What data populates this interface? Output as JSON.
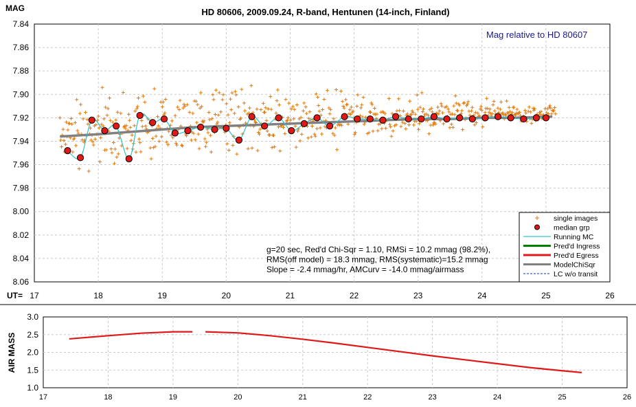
{
  "title": "HD 80606, 2009.09.24, R-band, Hentunen (14-inch, Finland)",
  "colors": {
    "single": "#e07a10",
    "median": "#e01818",
    "running": "#30c0c8",
    "ingress": "#008000",
    "egress": "#e01818",
    "model": "#808080",
    "nolc": "#1030c0",
    "annotation": "#1a1a8c",
    "grid": "#c8c8c8"
  },
  "chart_data": [
    {
      "type": "scatter",
      "ylabel": "MAG",
      "xlabel": "UT=",
      "annotation": "Mag relative to HD 80607",
      "xlim": [
        17,
        26
      ],
      "ylim": [
        7.84,
        8.06
      ],
      "y_inverted": true,
      "xticks": [
        "17",
        "18",
        "19",
        "20",
        "21",
        "22",
        "23",
        "24",
        "25",
        "26"
      ],
      "yticks": [
        "7.84",
        "7.86",
        "7.88",
        "7.90",
        "7.92",
        "7.94",
        "7.96",
        "7.98",
        "8.00",
        "8.02",
        "8.04",
        "8.06"
      ],
      "grid": true,
      "legend_placement": "bottom-right",
      "stats": [
        "g=20 sec, Red'd Chi-Sqr = 1.10, RMSi = 10.2 mmag (98.2%),",
        "RMS(off model) = 18.3 mmag, RMS(systematic)=15.2 mmag",
        "Slope = -2.4 mmag/hr, AMCurv = -14.0 mmag/airmass"
      ],
      "legend": [
        {
          "label": "single images",
          "marker": "plus",
          "color": "#e07a10"
        },
        {
          "label": "median grp",
          "marker": "dot",
          "color": "#e01818"
        },
        {
          "label": "Running MC",
          "marker": "line",
          "color": "#30c0c8"
        },
        {
          "label": "Pred'd Ingress",
          "marker": "thick",
          "color": "#008000"
        },
        {
          "label": "Pred'd Egress",
          "marker": "thick",
          "color": "#e01818"
        },
        {
          "label": "ModelChiSqr",
          "marker": "thick",
          "color": "#808080"
        },
        {
          "label": "LC w/o transit",
          "marker": "dash",
          "color": "#1030c0"
        }
      ],
      "series": [
        {
          "name": "median grp",
          "x": [
            17.52,
            17.72,
            17.9,
            18.1,
            18.28,
            18.48,
            18.65,
            18.85,
            19.03,
            19.2,
            19.4,
            19.6,
            19.82,
            20.0,
            20.2,
            20.4,
            20.6,
            20.82,
            21.02,
            21.22,
            21.42,
            21.62,
            21.85,
            22.05,
            22.25,
            22.45,
            22.65,
            22.85,
            23.05,
            23.25,
            23.45,
            23.65,
            23.85,
            24.05,
            24.25,
            24.45,
            24.65,
            24.85,
            25.0
          ],
          "y": [
            7.948,
            7.954,
            7.922,
            7.931,
            7.927,
            7.955,
            7.918,
            7.924,
            7.921,
            7.933,
            7.931,
            7.928,
            7.93,
            7.929,
            7.939,
            7.919,
            7.927,
            7.92,
            7.931,
            7.925,
            7.92,
            7.927,
            7.919,
            7.921,
            7.921,
            7.922,
            7.919,
            7.921,
            7.921,
            7.919,
            7.921,
            7.92,
            7.921,
            7.92,
            7.919,
            7.92,
            7.921,
            7.92,
            7.92
          ]
        },
        {
          "name": "ModelChiSqr",
          "x": [
            17.4,
            18.0,
            18.5,
            19.0,
            19.5,
            20.0,
            20.5,
            21.0,
            21.5,
            22.0,
            22.5,
            23.0,
            23.5,
            24.0,
            24.5,
            25.1
          ],
          "y": [
            7.936,
            7.934,
            7.932,
            7.93,
            7.928,
            7.927,
            7.926,
            7.925,
            7.924,
            7.923,
            7.922,
            7.921,
            7.921,
            7.92,
            7.92,
            7.919
          ]
        }
      ]
    },
    {
      "type": "line",
      "ylabel": "AIR MASS",
      "xlim": [
        17,
        26
      ],
      "ylim": [
        1.0,
        3.0
      ],
      "xticks": [
        "17",
        "18",
        "19",
        "20",
        "21",
        "22",
        "23",
        "24",
        "25",
        "26"
      ],
      "yticks": [
        "1.0",
        "1.5",
        "2.0",
        "2.5",
        "3.0"
      ],
      "grid": true,
      "series": [
        {
          "name": "",
          "segments": [
            {
              "x": [
                17.4,
                18.0,
                18.5,
                19.0,
                19.3
              ],
              "y": [
                2.38,
                2.47,
                2.54,
                2.58,
                2.58
              ]
            },
            {
              "x": [
                19.5,
                20.0,
                20.5,
                21.0,
                21.5,
                22.0,
                22.5,
                23.0,
                23.5,
                24.0,
                24.5,
                25.0,
                25.3
              ],
              "y": [
                2.58,
                2.55,
                2.47,
                2.37,
                2.26,
                2.14,
                2.02,
                1.9,
                1.79,
                1.68,
                1.57,
                1.48,
                1.43
              ]
            }
          ]
        }
      ]
    }
  ]
}
